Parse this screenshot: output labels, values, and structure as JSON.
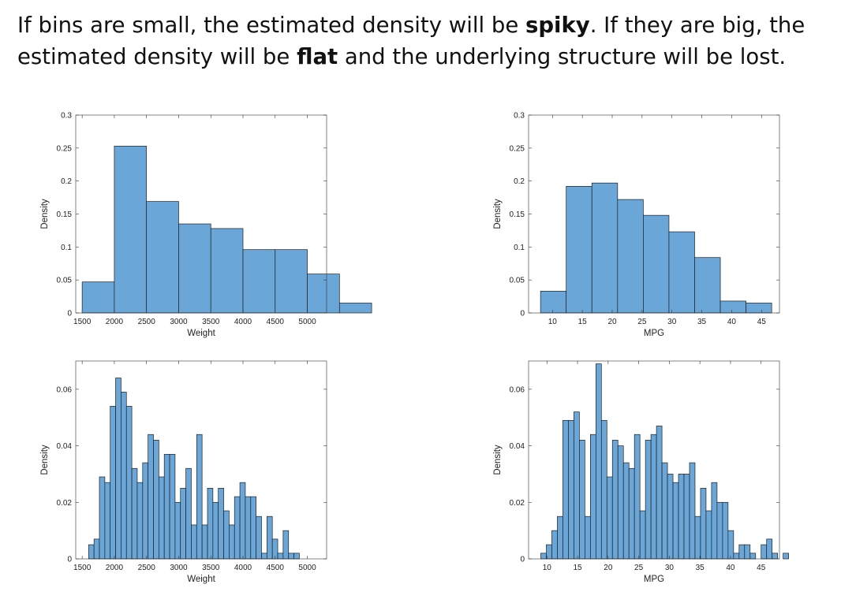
{
  "headline": {
    "part1": "If bins are small, the estimated density will be ",
    "bold1": "spiky",
    "part2": ". If they are big, the estimated density will be ",
    "bold2": "flat",
    "part3": " and the underlying structure will be lost."
  },
  "style": {
    "bar_fill": "#6aa7d8",
    "bar_stroke": "#1f1f1f",
    "axis_color": "#333333"
  },
  "chart_data": [
    {
      "type": "bar",
      "title": "",
      "xlabel": "Weight",
      "ylabel": "Density",
      "xlim": [
        1400,
        5300
      ],
      "ylim": [
        0,
        0.3
      ],
      "xticks": [
        1500,
        2000,
        2500,
        3000,
        3500,
        4000,
        4500,
        5000
      ],
      "yticks": [
        0,
        0.05,
        0.1,
        0.15,
        0.2,
        0.25,
        0.3
      ],
      "ytick_labels": [
        "0",
        "0.05",
        "0.1",
        "0.15",
        "0.2",
        "0.25",
        "0.3"
      ],
      "bin_width": 500,
      "bin_start": 1500,
      "values": [
        0.047,
        0.253,
        0.169,
        0.135,
        0.128,
        0.096,
        0.096,
        0.059,
        0.015
      ]
    },
    {
      "type": "bar",
      "title": "",
      "xlabel": "MPG",
      "ylabel": "Density",
      "xlim": [
        6,
        48
      ],
      "ylim": [
        0,
        0.3
      ],
      "xticks": [
        10,
        15,
        20,
        25,
        30,
        35,
        40,
        45
      ],
      "yticks": [
        0,
        0.05,
        0.1,
        0.15,
        0.2,
        0.25,
        0.3
      ],
      "ytick_labels": [
        "0",
        "0.05",
        "0.1",
        "0.15",
        "0.2",
        "0.25",
        "0.3"
      ],
      "bin_width": 4.3,
      "bin_start": 8,
      "values": [
        0.033,
        0.192,
        0.197,
        0.172,
        0.148,
        0.123,
        0.084,
        0.018,
        0.015
      ]
    },
    {
      "type": "bar",
      "title": "",
      "xlabel": "Weight",
      "ylabel": "Density",
      "xlim": [
        1400,
        5300
      ],
      "ylim": [
        0,
        0.07
      ],
      "xticks": [
        1500,
        2000,
        2500,
        3000,
        3500,
        4000,
        4500,
        5000
      ],
      "yticks": [
        0,
        0.02,
        0.04,
        0.06
      ],
      "ytick_labels": [
        "0",
        "0.02",
        "0.04",
        "0.06"
      ],
      "bin_width": 84,
      "bin_start": 1600,
      "values": [
        0.005,
        0.007,
        0.029,
        0.027,
        0.054,
        0.064,
        0.059,
        0.054,
        0.032,
        0.027,
        0.034,
        0.044,
        0.042,
        0.029,
        0.037,
        0.037,
        0.02,
        0.025,
        0.032,
        0.012,
        0.044,
        0.012,
        0.025,
        0.02,
        0.025,
        0.017,
        0.012,
        0.022,
        0.027,
        0.022,
        0.022,
        0.015,
        0.002,
        0.015,
        0.007,
        0.002,
        0.01,
        0.002,
        0.002
      ]
    },
    {
      "type": "bar",
      "title": "",
      "xlabel": "MPG",
      "ylabel": "Density",
      "xlim": [
        7,
        48
      ],
      "ylim": [
        0,
        0.07
      ],
      "xticks": [
        10,
        15,
        20,
        25,
        30,
        35,
        40,
        45
      ],
      "yticks": [
        0,
        0.02,
        0.04,
        0.06
      ],
      "ytick_labels": [
        "0",
        "0.02",
        "0.04",
        "0.06"
      ],
      "bin_width": 0.9,
      "bin_start": 9,
      "values": [
        0.002,
        0.005,
        0.01,
        0.015,
        0.049,
        0.049,
        0.052,
        0.042,
        0.015,
        0.044,
        0.069,
        0.049,
        0.029,
        0.042,
        0.04,
        0.034,
        0.032,
        0.044,
        0.017,
        0.042,
        0.044,
        0.047,
        0.034,
        0.03,
        0.027,
        0.03,
        0.03,
        0.034,
        0.015,
        0.025,
        0.017,
        0.027,
        0.02,
        0.02,
        0.01,
        0.002,
        0.005,
        0.005,
        0.002,
        0.0,
        0.005,
        0.007,
        0.002,
        0.0,
        0.002
      ]
    }
  ]
}
